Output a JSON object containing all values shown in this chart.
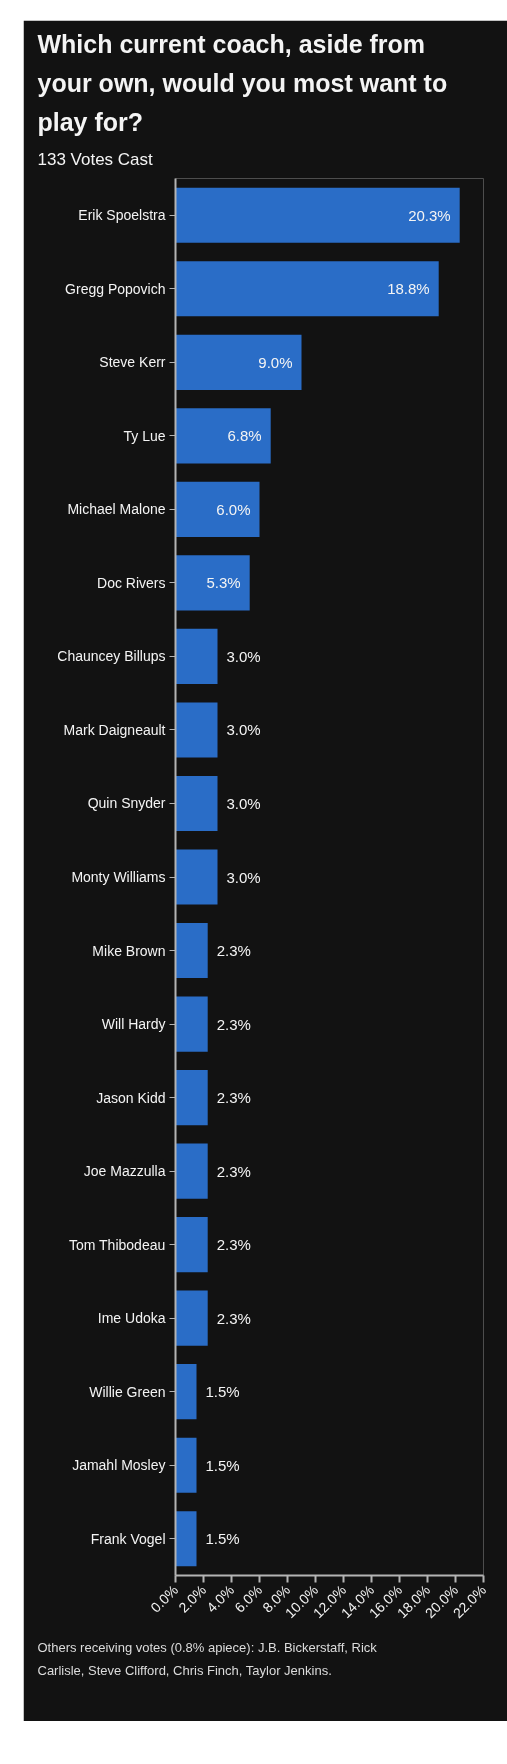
{
  "chart_data": {
    "type": "bar",
    "orientation": "horizontal",
    "title": "Which current coach, aside from your own, would you most want to play for?",
    "subtitle": "133 Votes Cast",
    "categories": [
      "Erik Spoelstra",
      "Gregg Popovich",
      "Steve Kerr",
      "Ty Lue",
      "Michael Malone",
      "Doc Rivers",
      "Chauncey Billups",
      "Mark Daigneault",
      "Quin Snyder",
      "Monty Williams",
      "Mike Brown",
      "Will Hardy",
      "Jason Kidd",
      "Joe Mazzulla",
      "Tom Thibodeau",
      "Ime Udoka",
      "Willie Green",
      "Jamahl Mosley",
      "Frank Vogel"
    ],
    "values": [
      20.3,
      18.8,
      9.0,
      6.8,
      6.0,
      5.3,
      3.0,
      3.0,
      3.0,
      3.0,
      2.3,
      2.3,
      2.3,
      2.3,
      2.3,
      2.3,
      1.5,
      1.5,
      1.5
    ],
    "value_labels": [
      "20.3%",
      "18.8%",
      "9.0%",
      "6.8%",
      "6.0%",
      "5.3%",
      "3.0%",
      "3.0%",
      "3.0%",
      "3.0%",
      "2.3%",
      "2.3%",
      "2.3%",
      "2.3%",
      "2.3%",
      "2.3%",
      "1.5%",
      "1.5%",
      "1.5%"
    ],
    "color": "#2a6dc7",
    "xlim": [
      0,
      22
    ],
    "xticks": [
      {
        "value": 0,
        "label": "0.0%"
      },
      {
        "value": 2,
        "label": "2.0%"
      },
      {
        "value": 4,
        "label": "4.0%"
      },
      {
        "value": 6,
        "label": "6.0%"
      },
      {
        "value": 8,
        "label": "8.0%"
      },
      {
        "value": 10,
        "label": "10.0%"
      },
      {
        "value": 12,
        "label": "12.0%"
      },
      {
        "value": 14,
        "label": "14.0%"
      },
      {
        "value": 16,
        "label": "16.0%"
      },
      {
        "value": 18,
        "label": "18.0%"
      },
      {
        "value": 20,
        "label": "20.0%"
      },
      {
        "value": 22,
        "label": "22.0%"
      }
    ],
    "annotations": [
      "Others receiving votes (0.8% apiece): J.B. Bickerstaff, Rick Carlisle, Steve Clifford, Chris Finch, Taylor Jenkins."
    ]
  }
}
